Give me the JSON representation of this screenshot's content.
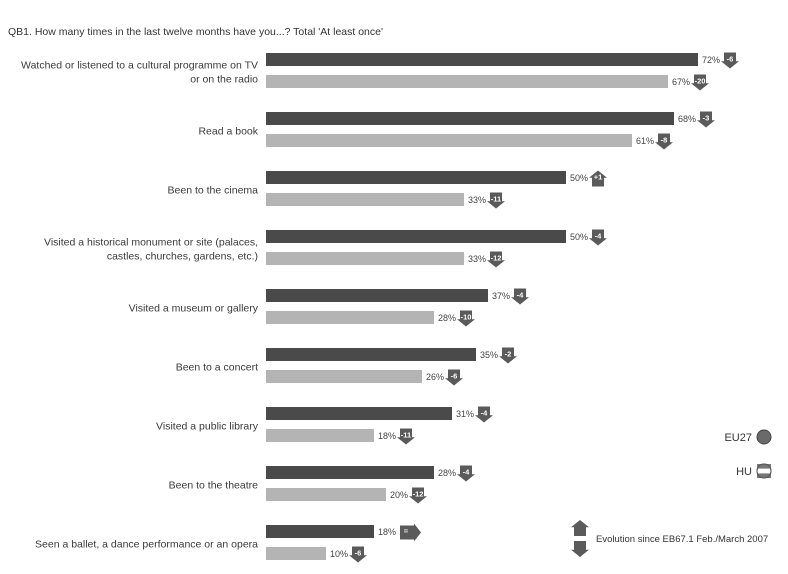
{
  "chart_data": {
    "type": "bar",
    "orientation": "horizontal",
    "title": "QB1. How many times in the last twelve months have you...? Total 'At least once'",
    "categories": [
      "Watched or listened to a cultural programme on TV or on the radio",
      "Read a book",
      "Been to the cinema",
      "Visited a historical monument or site (palaces, castles, churches, gardens, etc.)",
      "Visited a museum or gallery",
      "Been to a concert",
      "Visited a public library",
      "Been to the theatre",
      "Seen a ballet, a dance performance or an opera"
    ],
    "category_lines": [
      [
        "Watched or listened to a cultural programme on TV",
        "or on the radio"
      ],
      [
        "Read a book"
      ],
      [
        "Been to the cinema"
      ],
      [
        "Visited a historical monument or site (palaces,",
        "castles, churches, gardens, etc.)"
      ],
      [
        "Visited a museum or gallery"
      ],
      [
        "Been to a concert"
      ],
      [
        "Visited a public library"
      ],
      [
        "Been to the theatre"
      ],
      [
        "Seen a ballet, a dance performance or an opera"
      ]
    ],
    "series": [
      {
        "name": "EU27",
        "color": "#4a4a4a",
        "values": [
          72,
          68,
          50,
          50,
          37,
          35,
          31,
          28,
          18
        ],
        "labels": [
          "72%",
          "68%",
          "50%",
          "50%",
          "37%",
          "35%",
          "31%",
          "28%",
          "18%"
        ],
        "evolution": [
          -6,
          -3,
          1,
          -4,
          -4,
          -2,
          -4,
          -4,
          0
        ],
        "evolution_labels": [
          "-6",
          "-3",
          "+1",
          "-4",
          "-4",
          "-2",
          "-4",
          "-4",
          "="
        ]
      },
      {
        "name": "HU",
        "color": "#b4b4b4",
        "values": [
          67,
          61,
          33,
          33,
          28,
          26,
          18,
          20,
          10
        ],
        "labels": [
          "67%",
          "61%",
          "33%",
          "33%",
          "28%",
          "26%",
          "18%",
          "20%",
          "10%"
        ],
        "evolution": [
          -20,
          -8,
          -11,
          -12,
          -10,
          -6,
          -11,
          -12,
          -6
        ],
        "evolution_labels": [
          "-20",
          "-8",
          "-11",
          "-12",
          "-10",
          "-6",
          "-11",
          "-12",
          "-6"
        ]
      }
    ],
    "xlim": [
      0,
      80
    ],
    "legend": {
      "placement": "right",
      "entries": [
        "EU27",
        "HU"
      ]
    },
    "evolution_note": "Evolution since EB67.1 Feb./March 2007",
    "grid": false
  },
  "colors": {
    "eu27_bar": "#4a4a4a",
    "hu_bar": "#b4b4b4",
    "arrow": "#5a5a5a"
  }
}
